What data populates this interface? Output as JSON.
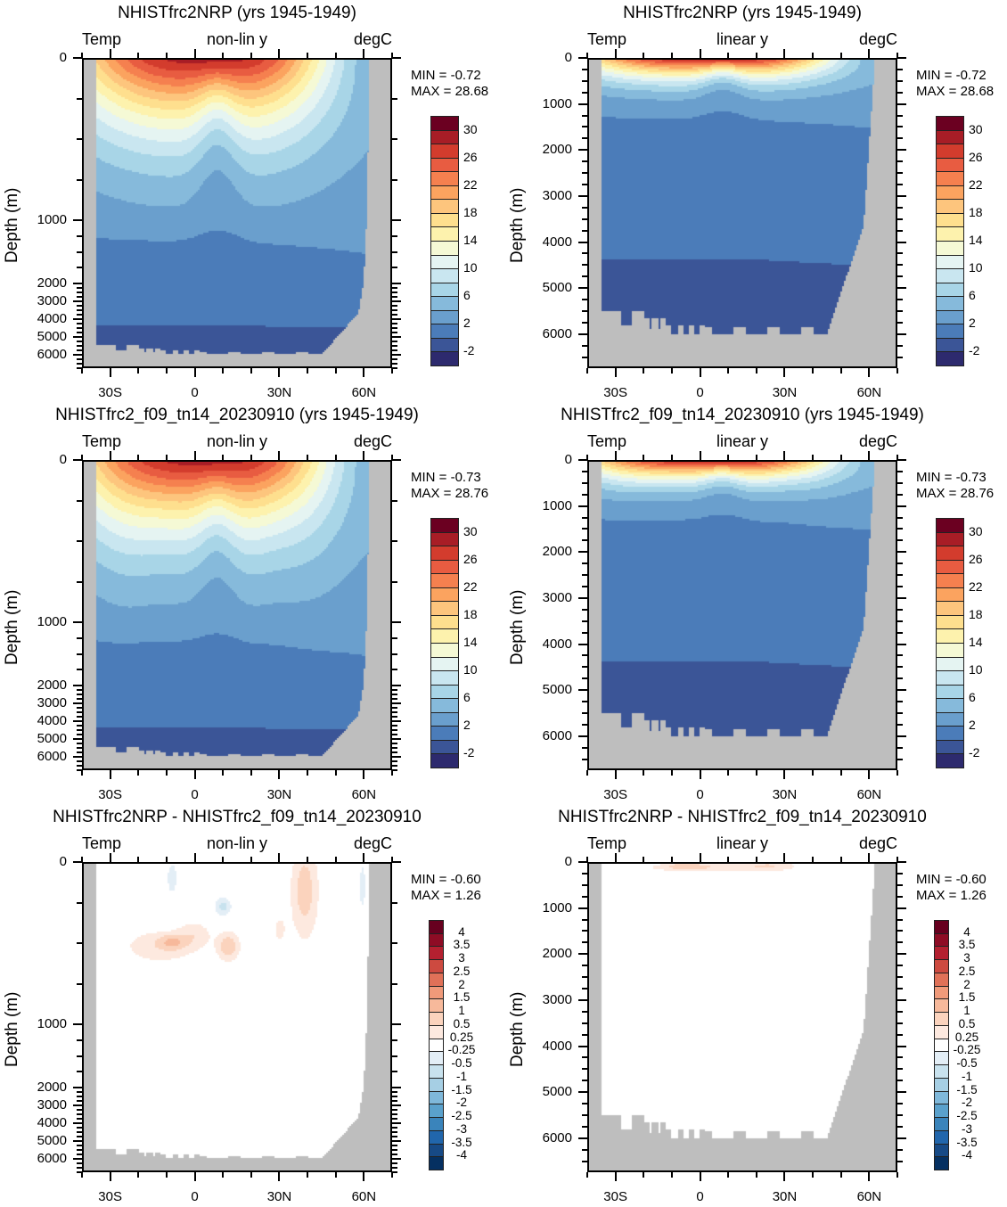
{
  "chart_data": [
    {
      "type": "contour",
      "title": "NHISTfrc2NRP (yrs 1945-1949)",
      "left_label": "Temp",
      "center_label": "non-lin y",
      "right_label": "degC",
      "ylabel": "Depth (m)",
      "y_scale": "non-linear",
      "min_label": "MIN =  -0.72",
      "max_label": "MAX =  28.68",
      "field": "temp",
      "xticks": [
        "30S",
        "0",
        "30N",
        "60N"
      ],
      "xtick_values": [
        -30,
        0,
        30,
        60
      ],
      "xlim": [
        -40,
        70
      ],
      "yticks": [
        "0",
        "1000",
        "2000",
        "3000",
        "4000",
        "5000",
        "6000"
      ],
      "ytick_values": [
        0,
        1000,
        2000,
        3000,
        4000,
        5000,
        6000
      ],
      "ylim": [
        0,
        6750
      ],
      "colorbar": "temp"
    },
    {
      "type": "contour",
      "title": "NHISTfrc2NRP (yrs 1945-1949)",
      "left_label": "Temp",
      "center_label": "linear y",
      "right_label": "degC",
      "ylabel": "Depth (m)",
      "y_scale": "linear",
      "min_label": "MIN =  -0.72",
      "max_label": "MAX =  28.68",
      "field": "temp",
      "xticks": [
        "30S",
        "0",
        "30N",
        "60N"
      ],
      "xtick_values": [
        -30,
        0,
        30,
        60
      ],
      "xlim": [
        -40,
        70
      ],
      "yticks": [
        "0",
        "1000",
        "2000",
        "3000",
        "4000",
        "5000",
        "6000"
      ],
      "ytick_values": [
        0,
        1000,
        2000,
        3000,
        4000,
        5000,
        6000
      ],
      "ylim": [
        0,
        6740
      ],
      "colorbar": "temp"
    },
    {
      "type": "contour",
      "title": "NHISTfrc2_f09_tn14_20230910 (yrs 1945-1949)",
      "left_label": "Temp",
      "center_label": "non-lin y",
      "right_label": "degC",
      "ylabel": "Depth (m)",
      "y_scale": "non-linear",
      "min_label": "MIN =  -0.73",
      "max_label": "MAX =  28.76",
      "field": "temp",
      "xticks": [
        "30S",
        "0",
        "30N",
        "60N"
      ],
      "xtick_values": [
        -30,
        0,
        30,
        60
      ],
      "xlim": [
        -40,
        70
      ],
      "yticks": [
        "0",
        "1000",
        "2000",
        "3000",
        "4000",
        "5000",
        "6000"
      ],
      "ytick_values": [
        0,
        1000,
        2000,
        3000,
        4000,
        5000,
        6000
      ],
      "ylim": [
        0,
        6750
      ],
      "colorbar": "temp"
    },
    {
      "type": "contour",
      "title": "NHISTfrc2_f09_tn14_20230910 (yrs 1945-1949)",
      "left_label": "Temp",
      "center_label": "linear y",
      "right_label": "degC",
      "ylabel": "Depth (m)",
      "y_scale": "linear",
      "min_label": "MIN =  -0.73",
      "max_label": "MAX =  28.76",
      "field": "temp",
      "xticks": [
        "30S",
        "0",
        "30N",
        "60N"
      ],
      "xtick_values": [
        -30,
        0,
        30,
        60
      ],
      "xlim": [
        -40,
        70
      ],
      "yticks": [
        "0",
        "1000",
        "2000",
        "3000",
        "4000",
        "5000",
        "6000"
      ],
      "ytick_values": [
        0,
        1000,
        2000,
        3000,
        4000,
        5000,
        6000
      ],
      "ylim": [
        0,
        6740
      ],
      "colorbar": "temp"
    },
    {
      "type": "contour",
      "title": "NHISTfrc2NRP - NHISTfrc2_f09_tn14_20230910",
      "left_label": "Temp",
      "center_label": "non-lin y",
      "right_label": "degC",
      "ylabel": "Depth (m)",
      "y_scale": "non-linear",
      "min_label": "MIN =  -0.60",
      "max_label": "MAX =   1.26",
      "field": "diff",
      "xticks": [
        "30S",
        "0",
        "30N",
        "60N"
      ],
      "xtick_values": [
        -30,
        0,
        30,
        60
      ],
      "xlim": [
        -40,
        70
      ],
      "yticks": [
        "0",
        "1000",
        "2000",
        "3000",
        "4000",
        "5000",
        "6000"
      ],
      "ytick_values": [
        0,
        1000,
        2000,
        3000,
        4000,
        5000,
        6000
      ],
      "ylim": [
        0,
        6750
      ],
      "colorbar": "diff"
    },
    {
      "type": "contour",
      "title": "NHISTfrc2NRP - NHISTfrc2_f09_tn14_20230910",
      "left_label": "Temp",
      "center_label": "linear y",
      "right_label": "degC",
      "ylabel": "Depth (m)",
      "y_scale": "linear",
      "min_label": "MIN =  -0.60",
      "max_label": "MAX =   1.26",
      "field": "diff",
      "xticks": [
        "30S",
        "0",
        "30N",
        "60N"
      ],
      "xtick_values": [
        -30,
        0,
        30,
        60
      ],
      "xlim": [
        -40,
        70
      ],
      "yticks": [
        "0",
        "1000",
        "2000",
        "3000",
        "4000",
        "5000",
        "6000"
      ],
      "ytick_values": [
        0,
        1000,
        2000,
        3000,
        4000,
        5000,
        6000
      ],
      "ylim": [
        0,
        6740
      ],
      "colorbar": "diff"
    }
  ],
  "colorbars": {
    "temp": {
      "levels": [
        -2,
        0,
        2,
        4,
        6,
        8,
        10,
        12,
        14,
        16,
        18,
        20,
        22,
        24,
        26,
        28,
        30
      ],
      "labels": [
        "-2",
        "",
        "2",
        "",
        "6",
        "",
        "10",
        "",
        "14",
        "",
        "18",
        "",
        "22",
        "",
        "26",
        "",
        "30"
      ],
      "colors": [
        "#2d2a6e",
        "#3b5597",
        "#4b7cb9",
        "#6a9fcd",
        "#86badb",
        "#a8d5e7",
        "#c9e6f0",
        "#e5f4f2",
        "#f5f9d5",
        "#fdf2ad",
        "#fedf8e",
        "#fdc57d",
        "#fba35f",
        "#f5804f",
        "#e85c41",
        "#d33c2d",
        "#a81d26",
        "#6b0021"
      ]
    },
    "diff": {
      "levels": [
        -4,
        -3.5,
        -3,
        -2.5,
        -2,
        -1.5,
        -1,
        -0.5,
        -0.25,
        0.25,
        0.5,
        1,
        1.5,
        2,
        2.5,
        3,
        3.5,
        4
      ],
      "labels": [
        "-4",
        "-3.5",
        "-3",
        "-2.5",
        "-2",
        "-1.5",
        "-1",
        "-0.5",
        "-0.25",
        "0.25",
        "0.5",
        "1",
        "1.5",
        "2",
        "2.5",
        "3",
        "3.5",
        "4"
      ],
      "colors": [
        "#053061",
        "#174a86",
        "#2166ac",
        "#3a84bb",
        "#5aa1cc",
        "#7fb8da",
        "#a6cfe4",
        "#c8e2ee",
        "#e3eef6",
        "#ffffff",
        "#fde9df",
        "#fbd3bd",
        "#f7b99b",
        "#f09a7a",
        "#e07158",
        "#cd4a40",
        "#b42030",
        "#8e0c25",
        "#67001f"
      ]
    },
    "land_color": "#bebebe"
  }
}
